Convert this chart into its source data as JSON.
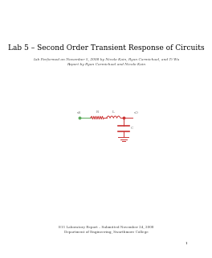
{
  "title": "Lab 5 – Second Order Transient Response of Circuits",
  "subtitle_line1": "Lab Performed on November 5, 2008 by Nicole Kain, Ryan Carmichael, and Ti Wu",
  "subtitle_line2": "Report by Ryan Carmichael and Nicole Kain",
  "footer_line1": "E11 Laboratory Report – Submitted November 24, 2008",
  "footer_line2": "Department of Engineering, Swarthmore College",
  "page_number": "1",
  "background_color": "#ffffff",
  "title_fontsize": 6.5,
  "subtitle_fontsize": 3.2,
  "footer_fontsize": 3.0,
  "page_num_fontsize": 3.0,
  "circuit": {
    "wire_color_green": "#5aaa5a",
    "wire_color_red": "#cc3333",
    "resistor_color": "#cc3333",
    "inductor_color": "#cc3333",
    "cap_color": "#cc3333",
    "ground_color": "#cc3333",
    "label_color": "#666666",
    "label_fontsize": 3.0
  }
}
